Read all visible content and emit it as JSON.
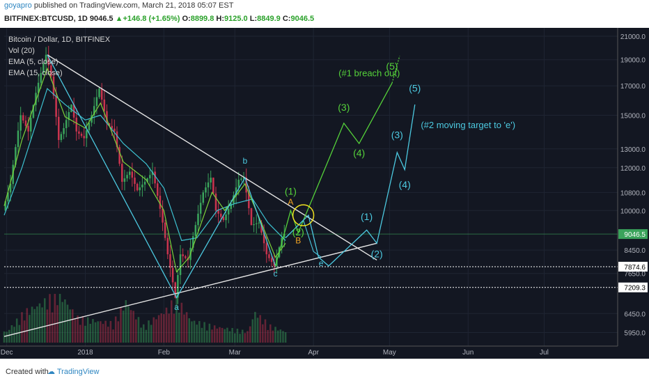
{
  "header": {
    "username": "goyapro",
    "published": "published on TradingView.com, March 21, 2018 05:07 EST",
    "symbol_line": "BITFINEX:BTCUSD, 1D",
    "last": "9046.5",
    "change": "+146.8 (+1.65%)",
    "o_label": "O:",
    "o": "8899.8",
    "h_label": "H:",
    "h": "9125.0",
    "l_label": "L:",
    "l": "8849.9",
    "c_label": "C:",
    "c": "9046.5"
  },
  "legend": {
    "title": "Bitcoin / Dollar, 1D, BITFINEX",
    "vol": "Vol (20)",
    "ema5": "EMA (5, close)",
    "ema15": "EMA (15, close)"
  },
  "footer": {
    "created": "Created with",
    "brand": "TradingView"
  },
  "colors": {
    "bg": "#131722",
    "bull": "#3aa35b",
    "bear": "#c8344e",
    "ema5": "#7cd23a",
    "ema15": "#3dc2d1",
    "trend": "#e6e6e6",
    "green_proj": "#55d23a",
    "cyan_proj": "#4cc9e0",
    "orange": "#f5a623",
    "circle": "#f0e020",
    "label_b": "#4cc9e0"
  },
  "chart_data": {
    "type": "line",
    "title": "Bitcoin / Dollar, 1D, BITFINEX",
    "y_scale": "log",
    "ylim": [
      5700,
      21500
    ],
    "y_ticks": [
      21000,
      19000,
      17000,
      15000,
      13000,
      12000,
      10800,
      10000,
      8450,
      7650,
      6450,
      5950
    ],
    "y_tick_labels": [
      "21000.0",
      "19000.0",
      "17000.0",
      "15000.0",
      "13000.0",
      "12000.0",
      "10800.0",
      "10000.0",
      "8450.0",
      "7650.0",
      "6450.0",
      "5950.0"
    ],
    "price_tags": [
      {
        "value": 9046.5,
        "label": "9046.5",
        "color": "#3aa35b"
      },
      {
        "value": 7874.6,
        "label": "7874.6",
        "color": "#ffffff"
      },
      {
        "value": 7209.3,
        "label": "7209.3",
        "color": "#ffffff"
      }
    ],
    "horizontal_lines": [
      7874.6,
      7209.3
    ],
    "x_ticks": [
      {
        "date": "2017-12-01",
        "label": "Dec"
      },
      {
        "date": "2018-01-01",
        "label": "2018"
      },
      {
        "date": "2018-02-01",
        "label": "Feb"
      },
      {
        "date": "2018-03-01",
        "label": "Mar"
      },
      {
        "date": "2018-04-01",
        "label": "Apr"
      },
      {
        "date": "2018-05-01",
        "label": "May"
      },
      {
        "date": "2018-06-01",
        "label": "Jun"
      },
      {
        "date": "2018-07-01",
        "label": "Jul"
      }
    ],
    "xlim": [
      "2017-11-30",
      "2018-07-30"
    ],
    "price_path": [
      [
        "2017-11-30",
        10000
      ],
      [
        "2017-12-03",
        11200
      ],
      [
        "2017-12-07",
        15000
      ],
      [
        "2017-12-10",
        14000
      ],
      [
        "2017-12-13",
        16500
      ],
      [
        "2017-12-17",
        19400
      ],
      [
        "2017-12-19",
        17700
      ],
      [
        "2017-12-22",
        13500
      ],
      [
        "2017-12-24",
        14200
      ],
      [
        "2017-12-27",
        15700
      ],
      [
        "2017-12-29",
        14000
      ],
      [
        "2018-01-01",
        13600
      ],
      [
        "2018-01-04",
        15000
      ],
      [
        "2018-01-07",
        16800
      ],
      [
        "2018-01-10",
        14500
      ],
      [
        "2018-01-13",
        14000
      ],
      [
        "2018-01-16",
        11300
      ],
      [
        "2018-01-19",
        11800
      ],
      [
        "2018-01-22",
        10900
      ],
      [
        "2018-01-25",
        11300
      ],
      [
        "2018-01-28",
        11800
      ],
      [
        "2018-02-01",
        9500
      ],
      [
        "2018-02-03",
        8300
      ],
      [
        "2018-02-06",
        6900
      ],
      [
        "2018-02-08",
        8300
      ],
      [
        "2018-02-11",
        8100
      ],
      [
        "2018-02-14",
        9400
      ],
      [
        "2018-02-17",
        10800
      ],
      [
        "2018-02-20",
        11500
      ],
      [
        "2018-02-22",
        10000
      ],
      [
        "2018-02-25",
        9600
      ],
      [
        "2018-02-28",
        10300
      ],
      [
        "2018-03-03",
        11400
      ],
      [
        "2018-03-05",
        11500
      ],
      [
        "2018-03-08",
        9400
      ],
      [
        "2018-03-11",
        9500
      ],
      [
        "2018-03-14",
        8300
      ],
      [
        "2018-03-17",
        7900
      ],
      [
        "2018-03-18",
        8200
      ],
      [
        "2018-03-20",
        8900
      ],
      [
        "2018-03-21",
        9046.5
      ]
    ],
    "ema5": [
      [
        "2017-11-30",
        10200
      ],
      [
        "2017-12-07",
        13500
      ],
      [
        "2017-12-17",
        18300
      ],
      [
        "2017-12-24",
        14900
      ],
      [
        "2018-01-01",
        14200
      ],
      [
        "2018-01-07",
        15800
      ],
      [
        "2018-01-16",
        12300
      ],
      [
        "2018-01-25",
        11400
      ],
      [
        "2018-02-01",
        10000
      ],
      [
        "2018-02-06",
        7700
      ],
      [
        "2018-02-11",
        8200
      ],
      [
        "2018-02-20",
        10800
      ],
      [
        "2018-02-25",
        10000
      ],
      [
        "2018-03-05",
        11200
      ],
      [
        "2018-03-11",
        9600
      ],
      [
        "2018-03-17",
        8200
      ],
      [
        "2018-03-21",
        8700
      ]
    ],
    "ema15": [
      [
        "2017-11-30",
        9800
      ],
      [
        "2017-12-07",
        12000
      ],
      [
        "2017-12-17",
        16800
      ],
      [
        "2017-12-24",
        15700
      ],
      [
        "2018-01-01",
        14700
      ],
      [
        "2018-01-07",
        15000
      ],
      [
        "2018-01-16",
        13300
      ],
      [
        "2018-01-25",
        12200
      ],
      [
        "2018-02-01",
        11000
      ],
      [
        "2018-02-08",
        8800
      ],
      [
        "2018-02-14",
        8900
      ],
      [
        "2018-02-22",
        10000
      ],
      [
        "2018-03-01",
        10300
      ],
      [
        "2018-03-08",
        10500
      ],
      [
        "2018-03-14",
        9500
      ],
      [
        "2018-03-21",
        8800
      ]
    ],
    "volume_scale_max": 100,
    "volume_profile": [
      [
        "2017-12-01",
        20
      ],
      [
        "2017-12-08",
        55
      ],
      [
        "2017-12-16",
        75
      ],
      [
        "2017-12-22",
        90
      ],
      [
        "2017-12-29",
        45
      ],
      [
        "2018-01-05",
        40
      ],
      [
        "2018-01-12",
        35
      ],
      [
        "2018-01-17",
        75
      ],
      [
        "2018-01-24",
        30
      ],
      [
        "2018-02-02",
        60
      ],
      [
        "2018-02-06",
        80
      ],
      [
        "2018-02-12",
        40
      ],
      [
        "2018-02-20",
        30
      ],
      [
        "2018-02-27",
        25
      ],
      [
        "2018-03-06",
        20
      ],
      [
        "2018-03-09",
        55
      ],
      [
        "2018-03-15",
        30
      ],
      [
        "2018-03-21",
        20
      ]
    ],
    "trendlines": [
      {
        "from": [
          "2017-12-17",
          19400
        ],
        "to": [
          "2018-04-26",
          8100
        ]
      },
      {
        "from": [
          "2017-11-30",
          5850
        ],
        "to": [
          "2018-04-26",
          8700
        ]
      }
    ],
    "wave_abc": [
      [
        "2017-12-17",
        19400
      ],
      [
        "2018-02-06",
        6900
      ],
      [
        "2018-03-05",
        11500
      ],
      [
        "2018-03-17",
        7900
      ]
    ],
    "green_projection": [
      [
        "2018-03-17",
        7900
      ],
      [
        "2018-03-23",
        10000
      ],
      [
        "2018-03-26",
        9100
      ],
      [
        "2018-04-13",
        14500
      ],
      [
        "2018-04-19",
        13300
      ],
      [
        "2018-05-02",
        17200
      ]
    ],
    "green_dotted": [
      [
        "2018-05-02",
        17200
      ],
      [
        "2018-05-05",
        19300
      ]
    ],
    "cyan_projection": [
      [
        "2018-03-21",
        8900
      ],
      [
        "2018-03-30",
        9800
      ],
      [
        "2018-04-03",
        8200
      ],
      [
        "2018-04-07",
        7900
      ],
      [
        "2018-04-22",
        9200
      ],
      [
        "2018-04-26",
        8700
      ],
      [
        "2018-05-04",
        12800
      ],
      [
        "2018-05-07",
        11900
      ],
      [
        "2018-05-11",
        15700
      ]
    ],
    "cyan_alt": [
      [
        "2018-03-21",
        8900
      ],
      [
        "2018-03-28",
        9600
      ],
      [
        "2018-04-01",
        8400
      ],
      [
        "2018-04-04",
        8200
      ]
    ],
    "annotations": [
      {
        "text": "a",
        "at": [
          "2018-02-06",
          6550
        ],
        "color": "#4cc9e0"
      },
      {
        "text": "b",
        "at": [
          "2018-03-05",
          12200
        ],
        "color": "#4cc9e0"
      },
      {
        "text": "c",
        "at": [
          "2018-03-17",
          7550
        ],
        "color": "#4cc9e0"
      },
      {
        "text": "e",
        "at": [
          "2018-04-04",
          7900
        ],
        "color": "#4cc9e0"
      },
      {
        "text": "A",
        "at": [
          "2018-03-23",
          10250
        ],
        "color": "#f5a623"
      },
      {
        "text": "B",
        "at": [
          "2018-03-26",
          8700
        ],
        "color": "#f5a623"
      },
      {
        "text": "(1)",
        "at": [
          "2018-03-23",
          10700
        ],
        "color": "#55d23a"
      },
      {
        "text": "(2)",
        "at": [
          "2018-03-26",
          9000
        ],
        "color": "#55d23a"
      },
      {
        "text": "(3)",
        "at": [
          "2018-04-13",
          15300
        ],
        "color": "#55d23a"
      },
      {
        "text": "(4)",
        "at": [
          "2018-04-19",
          12600
        ],
        "color": "#55d23a"
      },
      {
        "text": "(5)",
        "at": [
          "2018-05-02",
          18200
        ],
        "color": "#55d23a"
      },
      {
        "text": "(#1 breach out)",
        "at": [
          "2018-04-23",
          17700
        ],
        "color": "#55d23a"
      },
      {
        "text": "(1)",
        "at": [
          "2018-04-22",
          9600
        ],
        "color": "#4cc9e0"
      },
      {
        "text": "(2)",
        "at": [
          "2018-04-26",
          8200
        ],
        "color": "#4cc9e0"
      },
      {
        "text": "(3)",
        "at": [
          "2018-05-04",
          13600
        ],
        "color": "#4cc9e0"
      },
      {
        "text": "(4)",
        "at": [
          "2018-05-07",
          11000
        ],
        "color": "#4cc9e0"
      },
      {
        "text": "(5)",
        "at": [
          "2018-05-11",
          16600
        ],
        "color": "#4cc9e0"
      },
      {
        "text": "(#2 moving target to 'e')",
        "at": [
          "2018-06-01",
          14200
        ],
        "color": "#4cc9e0"
      }
    ],
    "circle_at": [
      "2018-03-28",
      9800
    ]
  }
}
